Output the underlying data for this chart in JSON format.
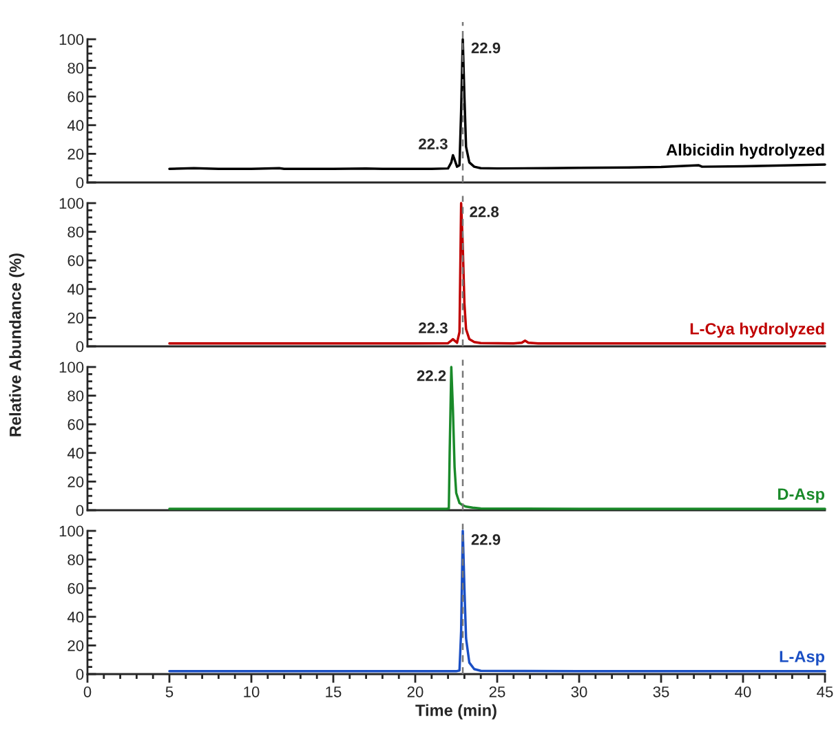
{
  "chart_data": [
    {
      "type": "line",
      "ylabel": "Relative Abundance (%)",
      "xlim": [
        0,
        45
      ],
      "ylim": [
        0,
        100
      ],
      "yticks": [
        0,
        20,
        40,
        60,
        80,
        100
      ],
      "tick_labels": "y",
      "grid": false,
      "legend": false,
      "marker": "none",
      "line_style": "solid",
      "series": [
        {
          "name": "Albicidin hydrolyzed",
          "color": "#000000",
          "x": [
            5,
            6.5,
            8,
            10,
            11.7,
            12,
            15,
            17,
            18,
            20,
            21,
            22.0,
            22.2,
            22.3,
            22.4,
            22.55,
            22.7,
            22.8,
            22.9,
            23.0,
            23.1,
            23.3,
            23.6,
            24,
            25,
            28,
            30,
            33,
            35,
            37.3,
            37.5,
            40,
            43,
            45
          ],
          "values": [
            9.5,
            10,
            9.5,
            9.5,
            10,
            9.5,
            9.5,
            9.7,
            9.5,
            9.5,
            9.5,
            9.8,
            14,
            19,
            16,
            11,
            12,
            50,
            100,
            60,
            25,
            14,
            11,
            10,
            9.8,
            10,
            10.2,
            10.5,
            10.8,
            12,
            11,
            11.3,
            12,
            12.5
          ]
        }
      ],
      "ref_lines": [
        {
          "axis": "x",
          "value": 22.9,
          "color": "#777777",
          "line_style": "dashed"
        }
      ],
      "annotations": [
        {
          "text": "22.3",
          "x": 22.3,
          "y": 19
        },
        {
          "text": "22.9",
          "x": 22.9,
          "y": 100
        }
      ]
    },
    {
      "type": "line",
      "xlim": [
        0,
        45
      ],
      "ylim": [
        0,
        100
      ],
      "yticks": [
        0,
        20,
        40,
        60,
        80,
        100
      ],
      "tick_labels": "y",
      "grid": false,
      "legend": false,
      "marker": "none",
      "line_style": "solid",
      "series": [
        {
          "name": "L-Cya hydrolyzed",
          "color": "#c00000",
          "x": [
            5,
            20,
            22.0,
            22.2,
            22.3,
            22.4,
            22.55,
            22.7,
            22.8,
            22.9,
            23.0,
            23.1,
            23.3,
            23.6,
            24,
            26,
            26.5,
            26.7,
            26.9,
            27.5,
            35,
            45
          ],
          "values": [
            2,
            2,
            2.2,
            4,
            5,
            4,
            2.5,
            10,
            100,
            70,
            30,
            12,
            5,
            3,
            2.3,
            2,
            2.5,
            4,
            2.5,
            2,
            2,
            2
          ]
        }
      ],
      "ref_lines": [
        {
          "axis": "x",
          "value": 22.9,
          "color": "#777777",
          "line_style": "dashed"
        }
      ],
      "annotations": [
        {
          "text": "22.3",
          "x": 22.3,
          "y": 5
        },
        {
          "text": "22.8",
          "x": 22.8,
          "y": 100
        }
      ]
    },
    {
      "type": "line",
      "xlim": [
        0,
        45
      ],
      "ylim": [
        0,
        100
      ],
      "yticks": [
        0,
        20,
        40,
        60,
        80,
        100
      ],
      "tick_labels": "y",
      "grid": false,
      "legend": false,
      "marker": "none",
      "line_style": "solid",
      "series": [
        {
          "name": "D-Asp",
          "color": "#1a8a2a",
          "x": [
            5,
            21.9,
            22.05,
            22.1,
            22.2,
            22.3,
            22.4,
            22.5,
            22.7,
            22.9,
            23.1,
            23.5,
            24,
            30,
            45
          ],
          "values": [
            1,
            1,
            1.2,
            40,
            100,
            70,
            30,
            12,
            5,
            3.5,
            2.5,
            1.8,
            1.2,
            1,
            1
          ]
        }
      ],
      "ref_lines": [
        {
          "axis": "x",
          "value": 22.9,
          "color": "#777777",
          "line_style": "dashed"
        }
      ],
      "annotations": [
        {
          "text": "22.2",
          "x": 22.2,
          "y": 100
        }
      ]
    },
    {
      "type": "line",
      "xlabel": "Time (min)",
      "xlim": [
        0,
        45
      ],
      "ylim": [
        0,
        100
      ],
      "xticks": [
        0,
        5,
        10,
        15,
        20,
        25,
        30,
        35,
        40,
        45
      ],
      "yticks": [
        0,
        20,
        40,
        60,
        80,
        100
      ],
      "grid": false,
      "legend": false,
      "marker": "none",
      "line_style": "solid",
      "series": [
        {
          "name": "L-Asp",
          "color": "#1a4fc4",
          "x": [
            5,
            22.5,
            22.7,
            22.8,
            22.9,
            23.0,
            23.1,
            23.3,
            23.6,
            24,
            30,
            45
          ],
          "values": [
            2,
            2,
            2.5,
            30,
            100,
            60,
            25,
            8,
            3.5,
            2.3,
            2,
            2
          ]
        }
      ],
      "ref_lines": [
        {
          "axis": "x",
          "value": 22.9,
          "color": "#777777",
          "line_style": "dashed"
        }
      ],
      "annotations": [
        {
          "text": "22.9",
          "x": 22.9,
          "y": 100
        }
      ]
    }
  ]
}
